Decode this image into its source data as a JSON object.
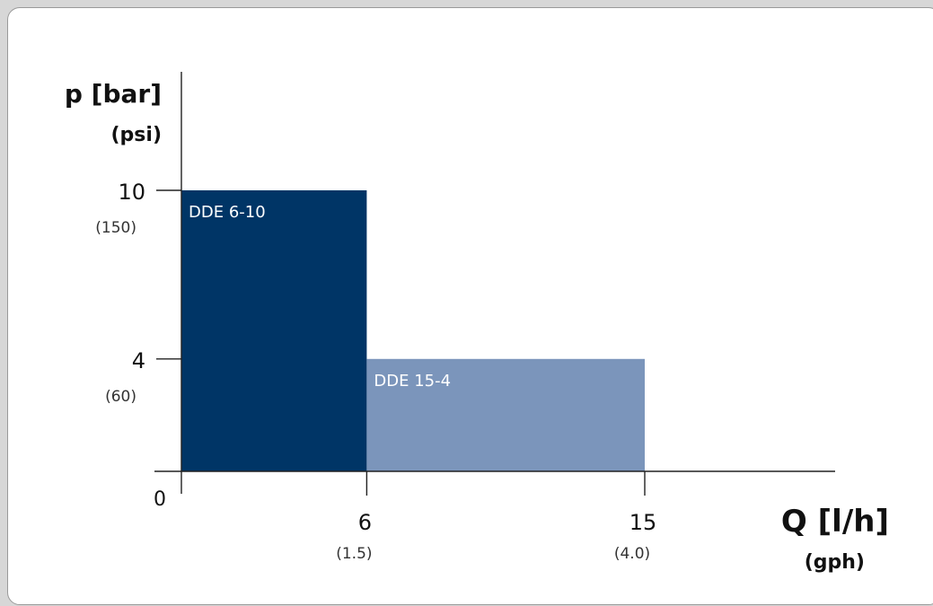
{
  "chart_data": {
    "type": "bar",
    "title": "",
    "ylabel": "p [bar]",
    "ylabel_sub": "(psi)",
    "xlabel": "Q [l/h]",
    "xlabel_sub": "(gph)",
    "origin_label": "0",
    "xlim": [
      0,
      21
    ],
    "ylim": [
      0,
      14
    ],
    "grid": false,
    "x_ticks": [
      {
        "value": 6,
        "label": "6",
        "sub": "(1.5)"
      },
      {
        "value": 15,
        "label": "15",
        "sub": "(4.0)"
      }
    ],
    "y_ticks": [
      {
        "value": 10,
        "label": "10",
        "sub": "(150)"
      },
      {
        "value": 4,
        "label": "4",
        "sub": "(60)"
      }
    ],
    "bars": [
      {
        "name": "DDE 6-10",
        "x_start": 0,
        "x_end": 6,
        "value": 10,
        "color": "#003566"
      },
      {
        "name": "DDE 15-4",
        "x_start": 6,
        "x_end": 15,
        "value": 4,
        "color": "#7b95bb"
      }
    ]
  }
}
